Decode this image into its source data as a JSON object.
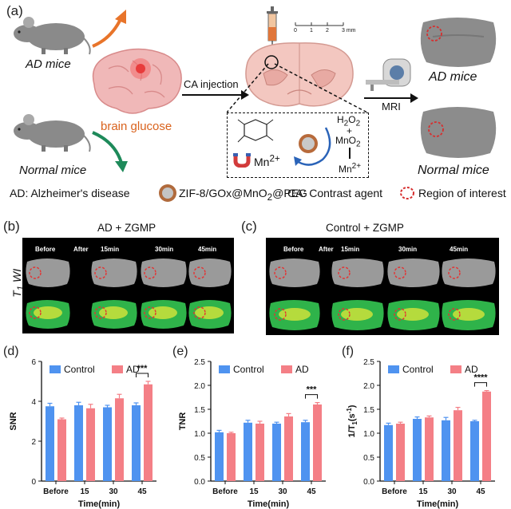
{
  "panel_a": {
    "label": "(a)",
    "ad_mice": "AD mice",
    "normal_mice": "Normal mice",
    "brain_glucose": "brain glucose",
    "ca_injection": "CA injection",
    "mri": "MRI",
    "ad_mice_right": "AD mice",
    "normal_mice_right": "Normal mice",
    "scale_ticks": [
      "0",
      "1",
      "2",
      "3 mm"
    ],
    "h2o2": "H2O2",
    "plus": "+",
    "mno2": "MnO2",
    "mn2_right": "Mn2+",
    "mn2_left": "Mn2+",
    "legend_ad": "AD: Alzheimer's disease",
    "legend_zgmp": "ZIF-8/GOx@MnO2@PEG",
    "legend_ca": "CA: Contrast agent",
    "legend_roi": "Region of interest"
  },
  "panel_b": {
    "label": "(b)",
    "title": "AD + ZGMP",
    "labels": [
      "Before",
      "After",
      "15min",
      "30min",
      "45min"
    ],
    "t1wi": "T1 WI"
  },
  "panel_c": {
    "label": "(c)",
    "title": "Control + ZGMP",
    "labels": [
      "Before",
      "After",
      "15min",
      "30min",
      "45min"
    ]
  },
  "chart_data": [
    {
      "label": "(d)",
      "type": "bar",
      "categories": [
        "Before",
        "15",
        "30",
        "45"
      ],
      "series": [
        {
          "name": "Control",
          "values": [
            3.75,
            3.8,
            3.7,
            3.8
          ],
          "errors": [
            0.15,
            0.15,
            0.1,
            0.12
          ]
        },
        {
          "name": "AD",
          "values": [
            3.1,
            3.65,
            4.15,
            4.85
          ],
          "errors": [
            0.06,
            0.2,
            0.2,
            0.15
          ]
        }
      ],
      "xlabel": "Time(min)",
      "ylabel": "SNR",
      "ylim": [
        0,
        6
      ],
      "yticks": [
        "0",
        "2",
        "4",
        "6"
      ],
      "significance": "***"
    },
    {
      "label": "(e)",
      "type": "bar",
      "categories": [
        "Before",
        "15",
        "30",
        "45"
      ],
      "series": [
        {
          "name": "Control",
          "values": [
            1.02,
            1.22,
            1.2,
            1.23
          ],
          "errors": [
            0.04,
            0.05,
            0.03,
            0.04
          ]
        },
        {
          "name": "AD",
          "values": [
            1.0,
            1.2,
            1.35,
            1.6
          ],
          "errors": [
            0.02,
            0.05,
            0.06,
            0.04
          ]
        }
      ],
      "xlabel": "Time(min)",
      "ylabel": "TNR",
      "ylim": [
        0,
        2.5
      ],
      "yticks": [
        "0.0",
        "0.5",
        "1.0",
        "1.5",
        "2.0",
        "2.5"
      ],
      "significance": "***"
    },
    {
      "label": "(f)",
      "type": "bar",
      "categories": [
        "Before",
        "15",
        "30",
        "45"
      ],
      "series": [
        {
          "name": "Control",
          "values": [
            1.17,
            1.3,
            1.27,
            1.25
          ],
          "errors": [
            0.04,
            0.04,
            0.06,
            0.02
          ]
        },
        {
          "name": "AD",
          "values": [
            1.2,
            1.33,
            1.48,
            1.87
          ],
          "errors": [
            0.03,
            0.03,
            0.06,
            0.02
          ]
        }
      ],
      "xlabel": "Time(min)",
      "ylabel": "1/T1(s-1)",
      "ylim": [
        0,
        2.5
      ],
      "yticks": [
        "0.0",
        "0.5",
        "1.0",
        "1.5",
        "2.0",
        "2.5"
      ],
      "significance": "****"
    }
  ],
  "colors": {
    "control": "#4f93f0",
    "ad": "#f47f86",
    "glucose": "#d9621d",
    "arrow_green": "#1e8a5a"
  }
}
